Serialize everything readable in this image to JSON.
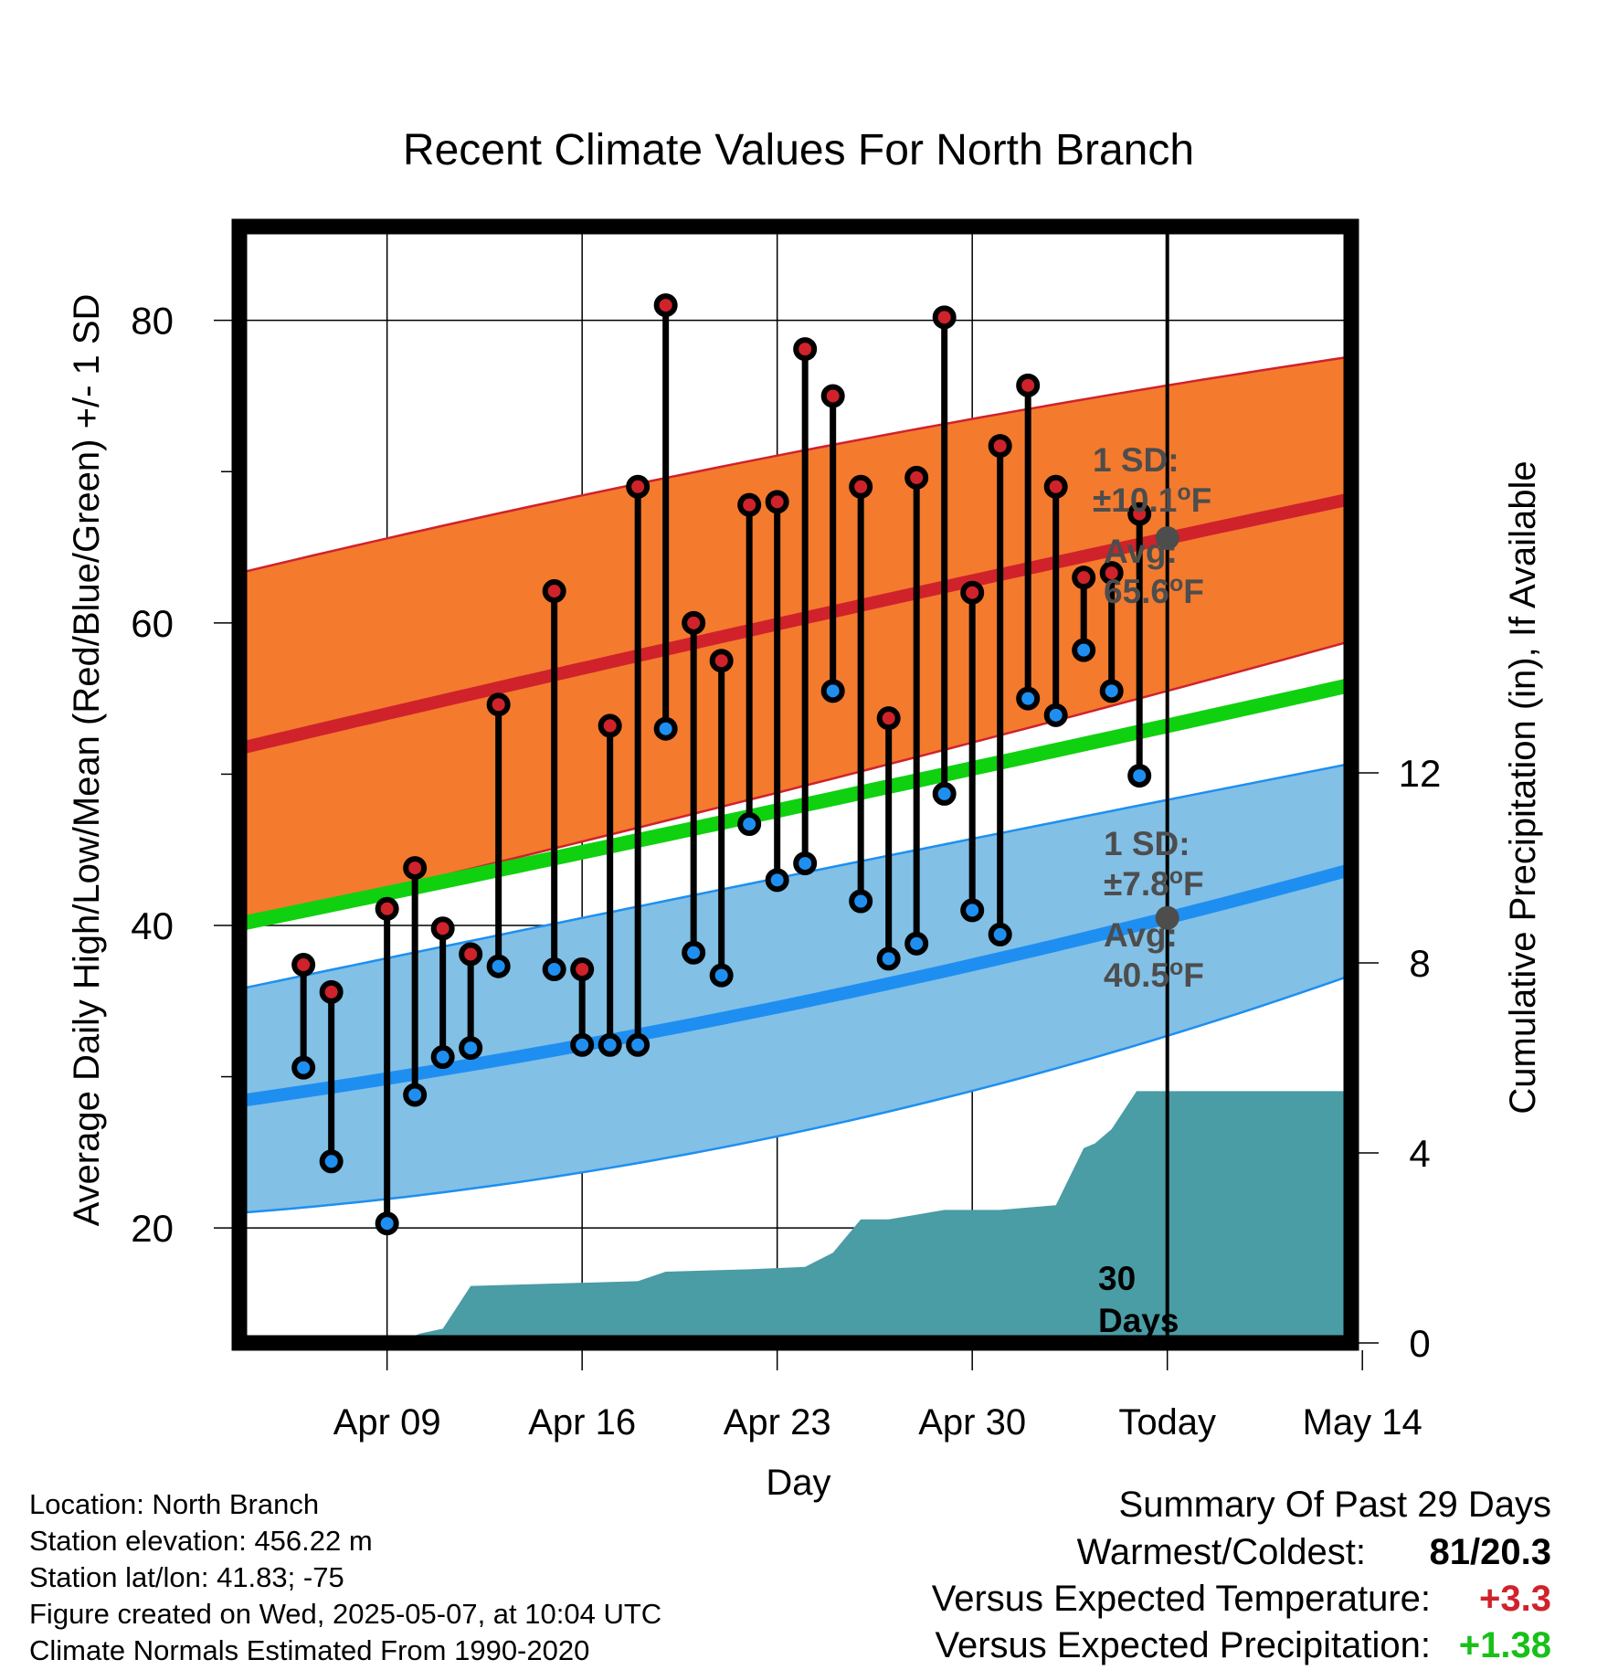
{
  "chart_data": {
    "type": "line",
    "title": "Recent Climate Values For North Branch",
    "xlabel": "Day",
    "ylabel": "Average Daily High/Low/Mean (Red/Blue/Green) +/- 1 SD",
    "y2label": "Cumulative Precipitation (in), If Available",
    "ylim": [
      12.4,
      86.2
    ],
    "y_ticks": [
      20,
      40,
      60,
      80
    ],
    "y2lim": [
      0,
      23.5
    ],
    "y2_ticks": [
      0,
      4,
      8,
      12
    ],
    "xlim": [
      3.7,
      43.6
    ],
    "x_ticks": [
      {
        "x": 9,
        "label": "Apr 09"
      },
      {
        "x": 16,
        "label": "Apr 16"
      },
      {
        "x": 23,
        "label": "Apr 23"
      },
      {
        "x": 30,
        "label": "Apr 30"
      },
      {
        "x": 37,
        "label": "Today"
      },
      {
        "x": 44,
        "label": "May 14"
      }
    ],
    "today_x": 37,
    "daily": {
      "x": [
        6,
        7,
        9,
        10,
        11,
        12,
        13,
        15,
        16,
        17,
        18,
        19,
        20,
        21,
        22,
        23,
        24,
        25,
        26,
        27,
        28,
        29,
        30,
        31,
        32,
        33,
        34,
        35,
        36
      ],
      "high": [
        37.4,
        35.6,
        41.1,
        43.8,
        39.8,
        38.1,
        54.6,
        62.1,
        37.1,
        53.2,
        69.0,
        81.0,
        60.0,
        57.5,
        67.8,
        68.0,
        78.1,
        75.0,
        69.0,
        53.7,
        69.6,
        80.2,
        62.0,
        71.7,
        75.7,
        69.0,
        63.0,
        63.3,
        67.2
      ],
      "low": [
        30.6,
        24.4,
        20.3,
        28.8,
        31.3,
        31.9,
        37.3,
        37.1,
        32.1,
        32.1,
        32.1,
        53.0,
        38.2,
        36.7,
        46.7,
        43.0,
        44.1,
        55.5,
        41.6,
        37.8,
        38.8,
        48.7,
        41.0,
        39.4,
        55.0,
        53.9,
        58.2,
        55.5,
        49.9
      ]
    },
    "normals": {
      "x": [
        3.7,
        37,
        43.6
      ],
      "high_mean": [
        51.7,
        65.6,
        68.2
      ],
      "high_sd": [
        11.6,
        10.1,
        9.4
      ],
      "low_mean": [
        28.4,
        40.5,
        43.7
      ],
      "low_sd": [
        7.4,
        7.8,
        7.0
      ],
      "mean": [
        40.1,
        53.2,
        55.9
      ]
    },
    "precipitation": {
      "x": [
        3.7,
        9.3,
        10.2,
        11,
        12,
        18,
        19,
        22,
        24,
        25,
        26,
        27,
        28,
        29,
        30,
        31,
        32,
        33,
        34,
        34.4,
        35,
        35.9,
        37,
        38,
        43.6
      ],
      "cumulative": [
        0,
        0,
        0.2,
        0.3,
        1.2,
        1.3,
        1.5,
        1.55,
        1.6,
        1.9,
        2.6,
        2.6,
        2.7,
        2.8,
        2.8,
        2.8,
        2.85,
        2.9,
        4.1,
        4.2,
        4.5,
        5.3,
        5.3,
        5.3,
        5.3
      ]
    },
    "colors": {
      "high_band": "#f47a2e",
      "high_line": "#d0222b",
      "low_band": "#82c0e6",
      "low_line": "#1e8ff0",
      "mean_line": "#0fd10f",
      "precip": "#4a9ca5",
      "annotation": "#4d4d4d"
    },
    "annotations": {
      "high_sd_label": "1 SD:",
      "high_sd_value": "±10.1",
      "high_avg_label": "Avg:",
      "high_avg_value": "65.6",
      "low_sd_label": "1 SD:",
      "low_sd_value": "±7.8",
      "low_avg_label": "Avg:",
      "low_avg_value": "40.5",
      "degree": "o",
      "unit": "F",
      "days_label_1": "30",
      "days_label_2": "Days"
    }
  },
  "info": {
    "location": "Location: North Branch",
    "elevation": "Station elevation: 456.22 m",
    "latlon": "Station lat/lon: 41.83; -75",
    "created": "Figure created on Wed, 2025-05-07, at 10:04 UTC",
    "normals": "Climate Normals Estimated From 1990-2020"
  },
  "summary": {
    "title": "Summary Of Past 29 Days",
    "warm_cold_label": "Warmest/Coldest:",
    "warm_cold_value": "81/20.3",
    "temp_label": "Versus Expected Temperature:",
    "temp_value": "+3.3",
    "temp_color": "#d0222b",
    "precip_label": "Versus Expected Precipitation:",
    "precip_value": "+1.38",
    "precip_color": "#18c018"
  }
}
